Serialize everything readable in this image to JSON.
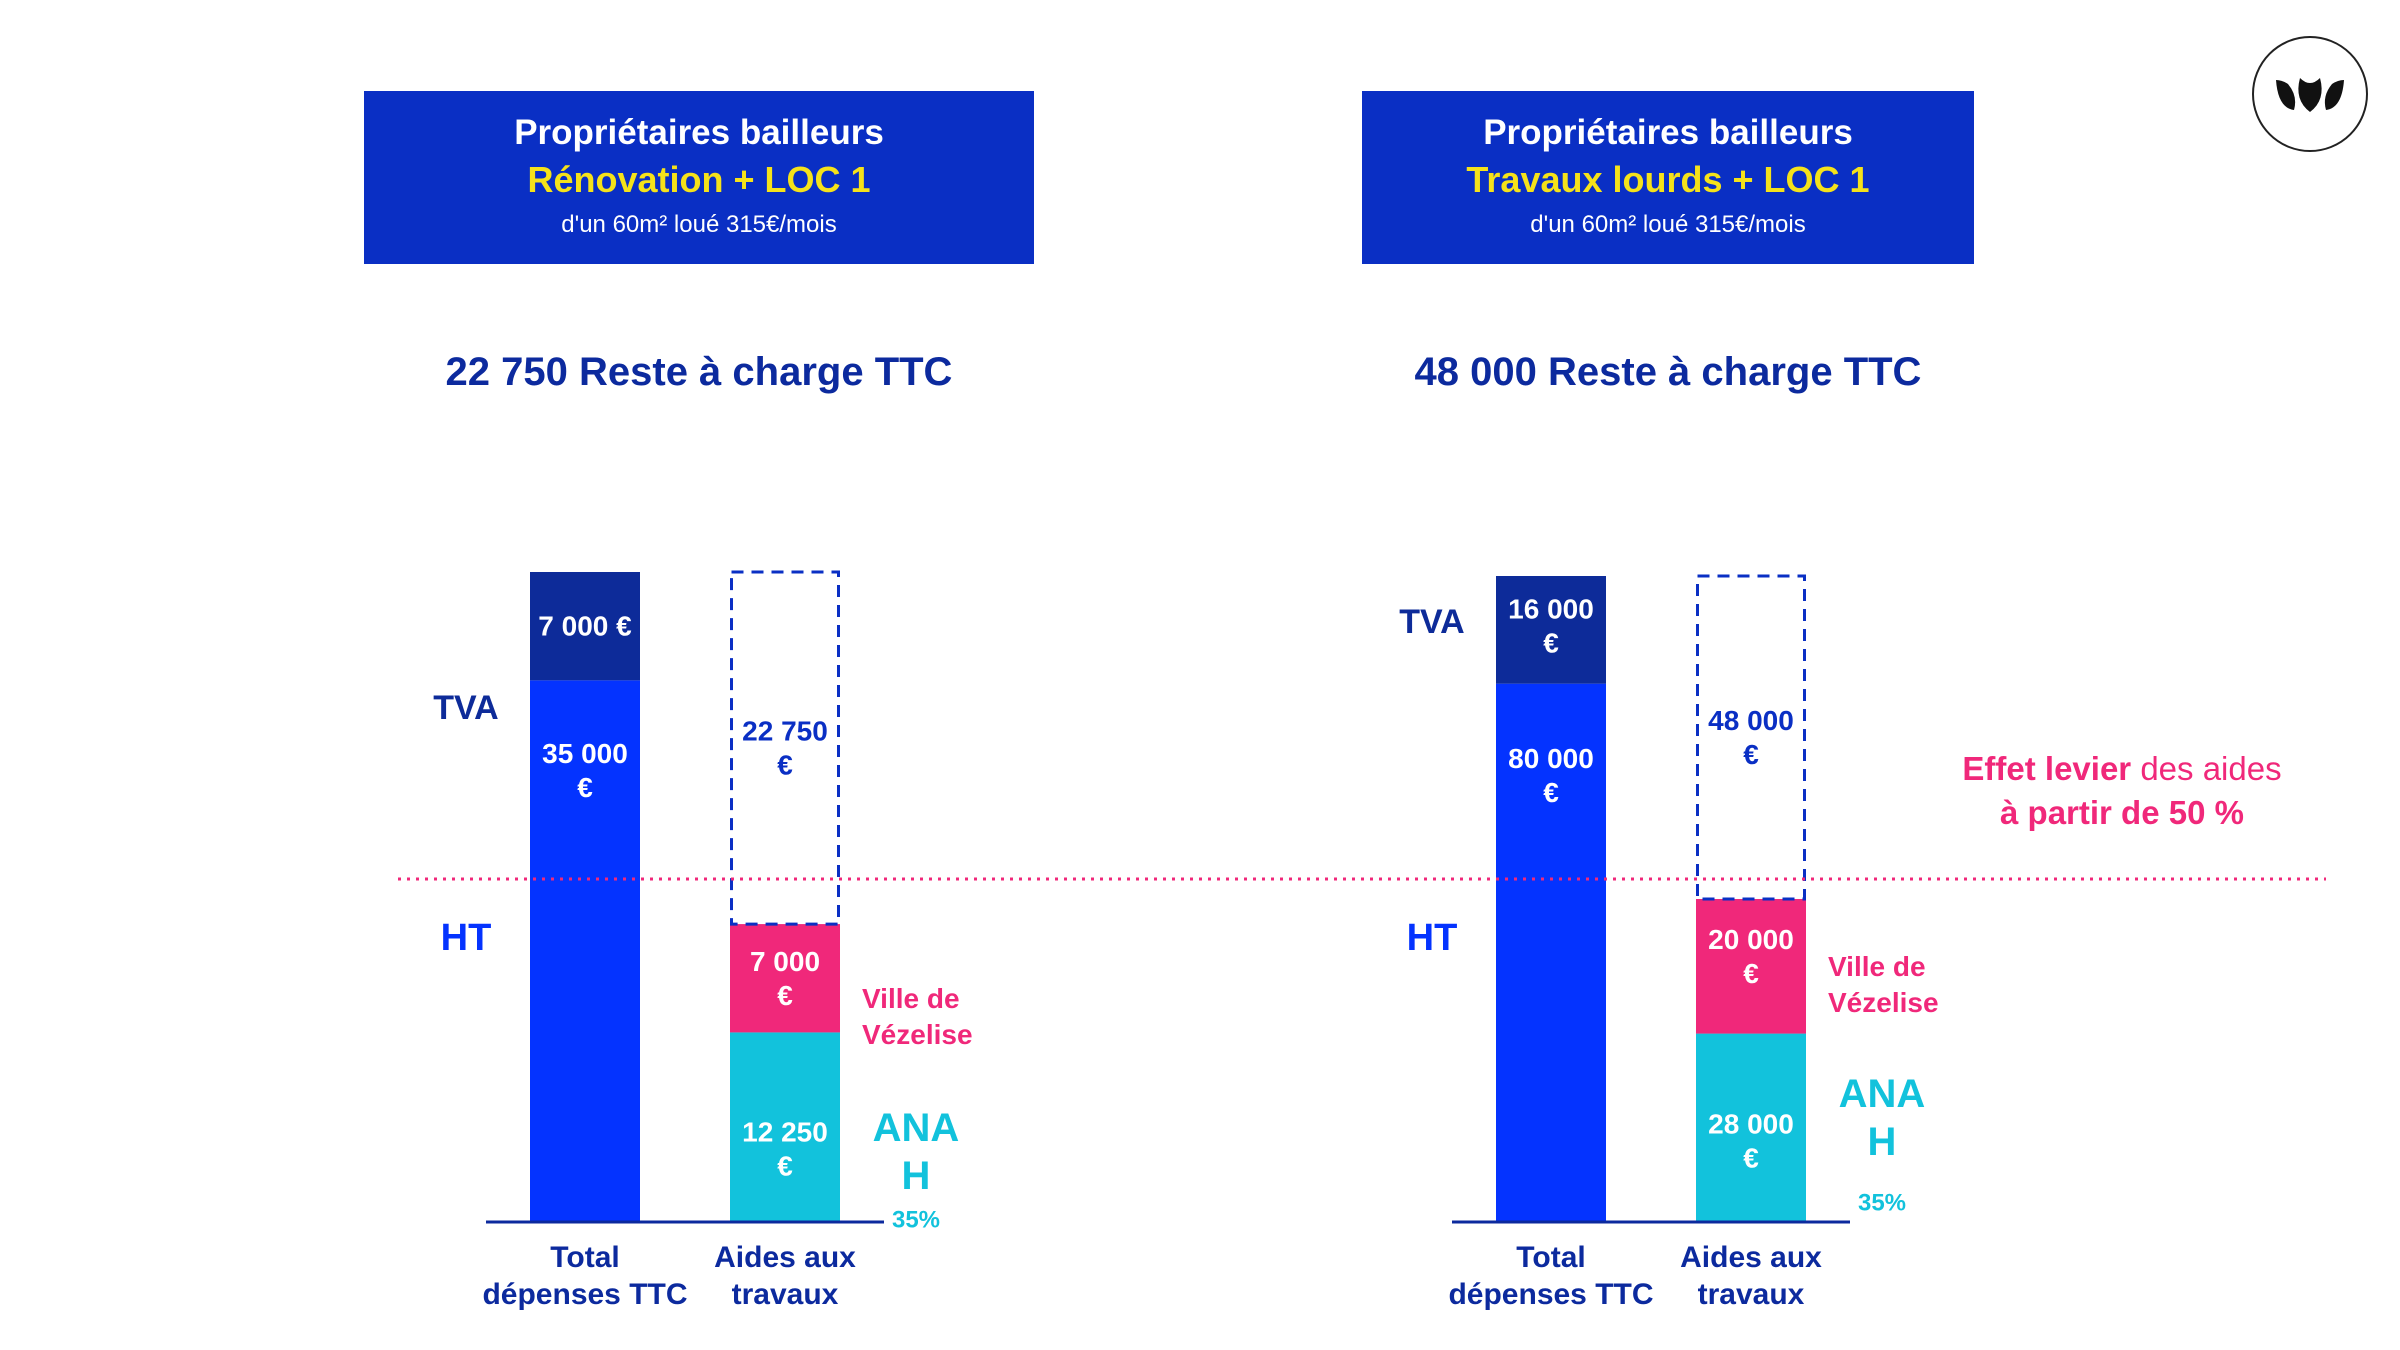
{
  "panels": [
    {
      "header": {
        "title": "Propriétaires bailleurs",
        "subtitle": "Rénovation + LOC 1",
        "note": "d'un 60m² loué 315€/mois"
      },
      "reste": "22 750 Reste à charge TTC"
    },
    {
      "header": {
        "title": "Propriétaires bailleurs",
        "subtitle": "Travaux lourds + LOC 1",
        "note": "d'un 60m² loué 315€/mois"
      },
      "reste": "48 000 Reste à charge TTC"
    }
  ],
  "logo": {
    "icon": "leaf-logo-icon"
  },
  "annotation": {
    "line1_bold": "Effet levier",
    "line1_rest": " des aides",
    "line2": "à partir de 50 %"
  },
  "colors": {
    "ht": "#0433ff",
    "tva": "#0d2b99",
    "ville": "#f0287a",
    "anah": "#12c2dc",
    "dashed": "#0a2fc4",
    "text_dark": "#0c2a9e",
    "header_bg": "#0a2fc4",
    "header_accent": "#f5e21a"
  },
  "chart_data": [
    {
      "type": "bar",
      "stacked": true,
      "categories": [
        "Total\ndépenses TTC",
        "Aides aux\ntravaux"
      ],
      "series": [
        {
          "name": "HT",
          "values": [
            35000,
            null
          ],
          "labels": [
            "35 000\n€",
            null
          ]
        },
        {
          "name": "TVA",
          "values": [
            7000,
            null
          ],
          "labels": [
            "7 000 €",
            null
          ]
        },
        {
          "name": "ANAH",
          "values": [
            null,
            12250
          ],
          "labels": [
            null,
            "12 250\n€"
          ],
          "side_label": "ANA\nH",
          "share": "35%"
        },
        {
          "name": "Ville de\nVézelise",
          "values": [
            null,
            7000
          ],
          "labels": [
            null,
            "7 000\n€"
          ]
        },
        {
          "name": "Reste à charge",
          "values": [
            null,
            22750
          ],
          "labels": [
            null,
            "22 750\n€"
          ],
          "style": "dashed"
        }
      ],
      "reference_line": {
        "label": "50 %",
        "value": 21000
      },
      "ylim": [
        0,
        42000
      ]
    },
    {
      "type": "bar",
      "stacked": true,
      "categories": [
        "Total\ndépenses TTC",
        "Aides aux\ntravaux"
      ],
      "series": [
        {
          "name": "HT",
          "values": [
            80000,
            null
          ],
          "labels": [
            "80 000\n€",
            null
          ]
        },
        {
          "name": "TVA",
          "values": [
            16000,
            null
          ],
          "labels": [
            "16 000\n€",
            null
          ]
        },
        {
          "name": "ANAH",
          "values": [
            null,
            28000
          ],
          "labels": [
            null,
            "28 000\n€"
          ],
          "side_label": "ANA\nH",
          "share": "35%"
        },
        {
          "name": "Ville de\nVézelise",
          "values": [
            null,
            20000
          ],
          "labels": [
            null,
            "20 000\n€"
          ]
        },
        {
          "name": "Reste à charge",
          "values": [
            null,
            48000
          ],
          "labels": [
            null,
            "48 000\n€"
          ],
          "style": "dashed"
        }
      ],
      "reference_line": {
        "label": "50 %",
        "value": 48000
      },
      "ylim": [
        0,
        96000
      ]
    }
  ]
}
